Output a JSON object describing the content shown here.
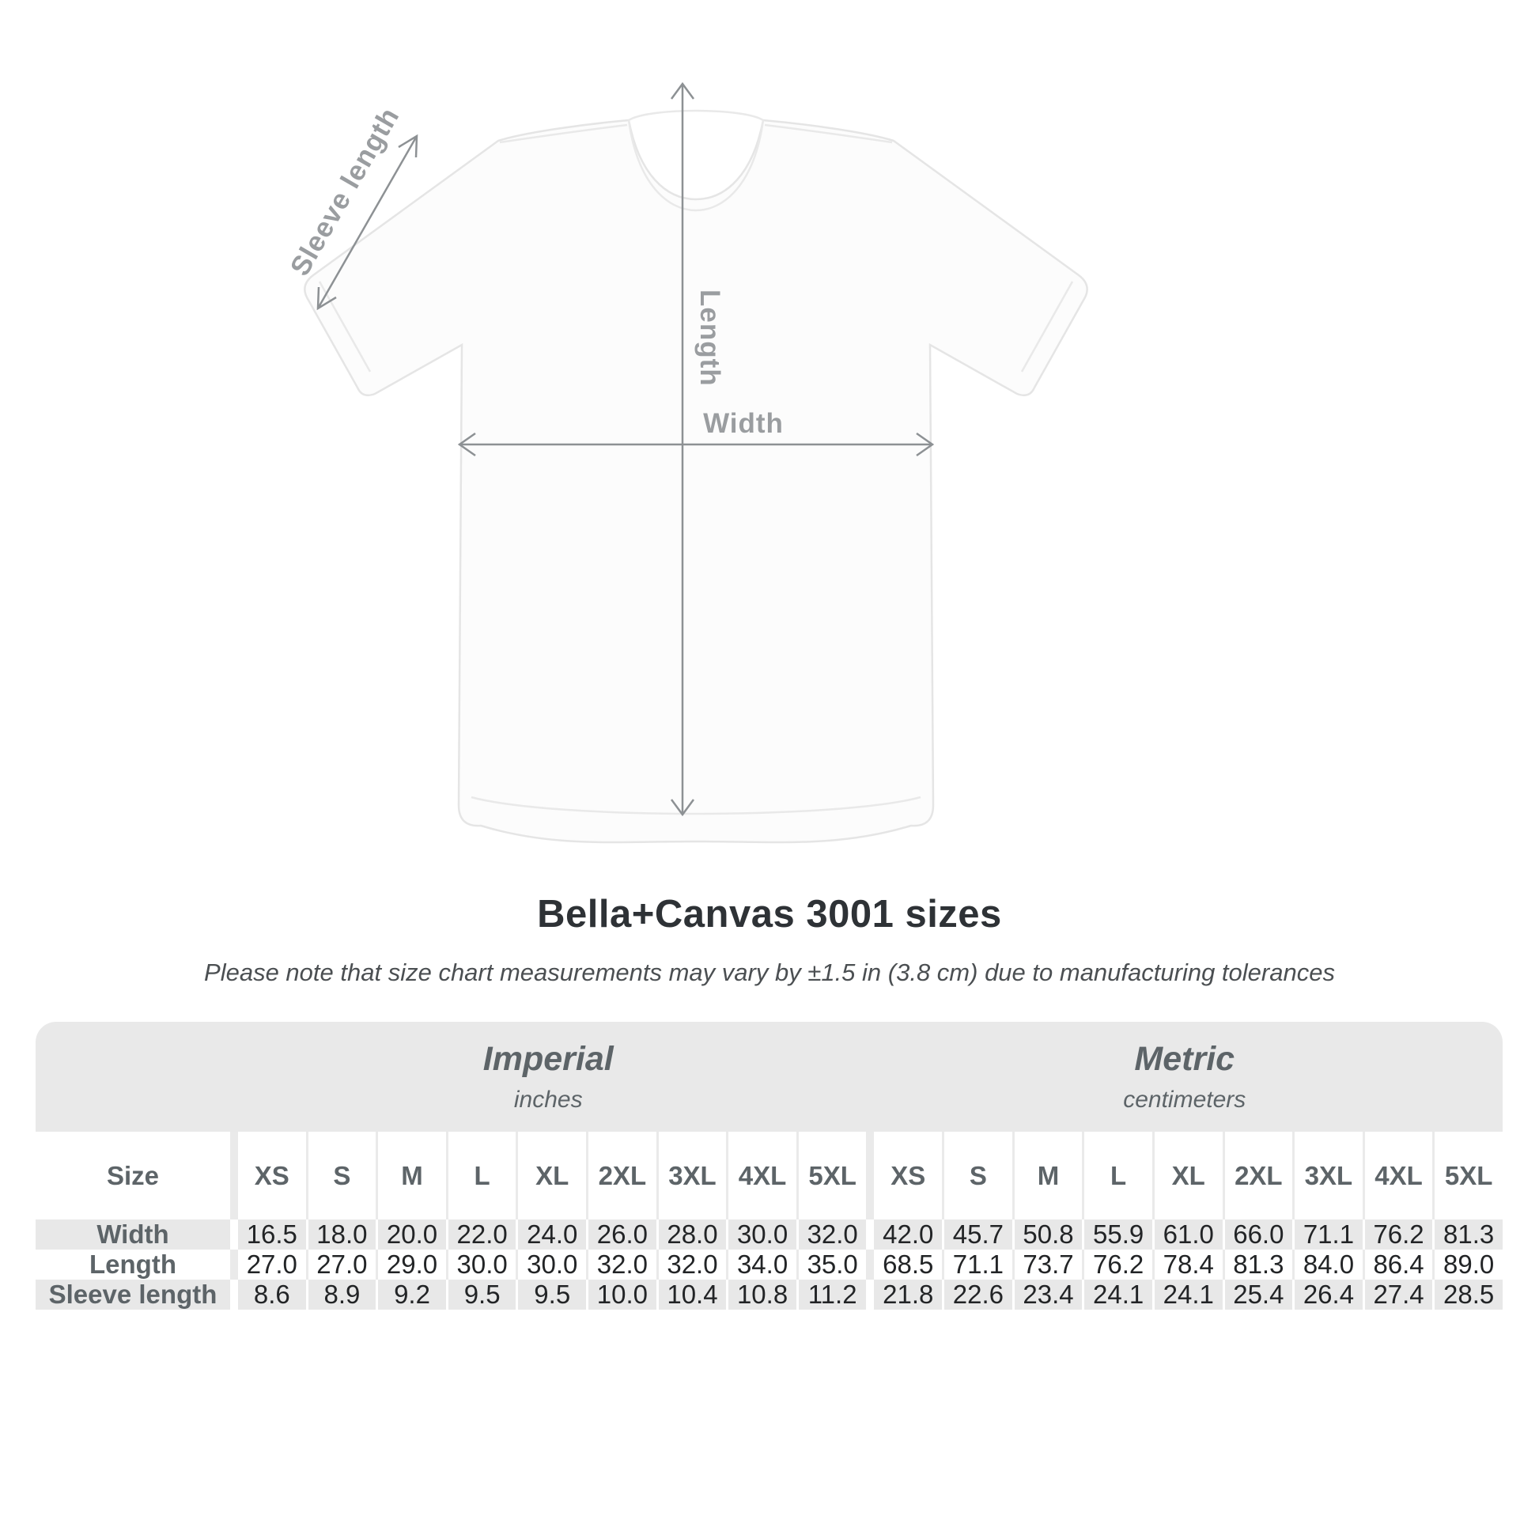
{
  "title": "Bella+Canvas 3001 sizes",
  "subtitle": "Please note that size chart measurements may vary by ±1.5 in (3.8 cm) due to manufacturing tolerances",
  "diagram": {
    "sleeve_label": "Sleeve length",
    "length_label": "Length",
    "width_label": "Width"
  },
  "table": {
    "size_header": "Size",
    "sizes": [
      "XS",
      "S",
      "M",
      "L",
      "XL",
      "2XL",
      "3XL",
      "4XL",
      "5XL"
    ],
    "groups": [
      {
        "label": "Imperial",
        "sub": "inches"
      },
      {
        "label": "Metric",
        "sub": "centimeters"
      }
    ],
    "row_labels": [
      "Width",
      "Length",
      "Sleeve length"
    ]
  },
  "chart_data": {
    "type": "table",
    "title": "Bella+Canvas 3001 sizes",
    "note": "Measurements may vary by ±1.5 in (3.8 cm) due to manufacturing tolerances",
    "categories": [
      "XS",
      "S",
      "M",
      "L",
      "XL",
      "2XL",
      "3XL",
      "4XL",
      "5XL"
    ],
    "series": [
      {
        "name": "Width",
        "unit": "in",
        "values": [
          16.5,
          18.0,
          20.0,
          22.0,
          24.0,
          26.0,
          28.0,
          30.0,
          32.0
        ]
      },
      {
        "name": "Length",
        "unit": "in",
        "values": [
          27.0,
          27.0,
          29.0,
          30.0,
          30.0,
          32.0,
          32.0,
          34.0,
          35.0
        ]
      },
      {
        "name": "Sleeve length",
        "unit": "in",
        "values": [
          8.6,
          8.9,
          9.2,
          9.5,
          9.5,
          10.0,
          10.4,
          10.8,
          11.2
        ]
      },
      {
        "name": "Width",
        "unit": "cm",
        "values": [
          42.0,
          45.7,
          50.8,
          55.9,
          61.0,
          66.0,
          71.1,
          76.2,
          81.3
        ]
      },
      {
        "name": "Length",
        "unit": "cm",
        "values": [
          68.5,
          71.1,
          73.7,
          76.2,
          78.4,
          81.3,
          84.0,
          86.4,
          89.0
        ]
      },
      {
        "name": "Sleeve length",
        "unit": "cm",
        "values": [
          21.8,
          22.6,
          23.4,
          24.1,
          24.1,
          25.4,
          26.4,
          27.4,
          28.5
        ]
      }
    ]
  },
  "colors": {
    "table_band": "#e9e9e9",
    "table_alt_row": "#e8e8e8",
    "header_text": "#5d6468",
    "value_text": "#222426",
    "diagram_label": "#9a9da0",
    "arrow": "#8d9194",
    "title_text": "#2e3236"
  }
}
